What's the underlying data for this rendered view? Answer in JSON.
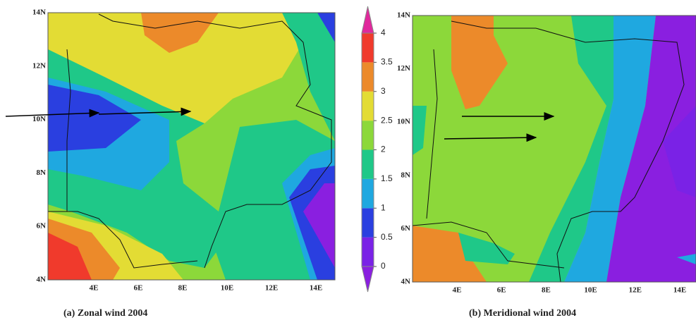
{
  "panels": [
    {
      "caption": "(a) Zonal wind 2004",
      "yticks": [
        "14N",
        "12N",
        "10N",
        "8N",
        "6N",
        "4N"
      ],
      "xticks": [
        "4E",
        "6E",
        "8E",
        "10E",
        "12E",
        "14E"
      ]
    },
    {
      "caption": "(b) Meridional wind 2004",
      "yticks": [
        "14N",
        "12N",
        "10N",
        "8N",
        "6N",
        "4N"
      ],
      "xticks": [
        "4E",
        "6E",
        "8E",
        "10E",
        "12E",
        "14E"
      ]
    }
  ],
  "colorbar": {
    "ticks": [
      0,
      0.5,
      1,
      1.5,
      2,
      2.5,
      3,
      3.5,
      4
    ],
    "colors": [
      "#8a1fe0",
      "#7a22e6",
      "#2a3fe0",
      "#1fa8e0",
      "#1fc888",
      "#8cd83a",
      "#e3dc34",
      "#ec8a2a",
      "#f03a2c",
      "#e0289c"
    ]
  }
}
